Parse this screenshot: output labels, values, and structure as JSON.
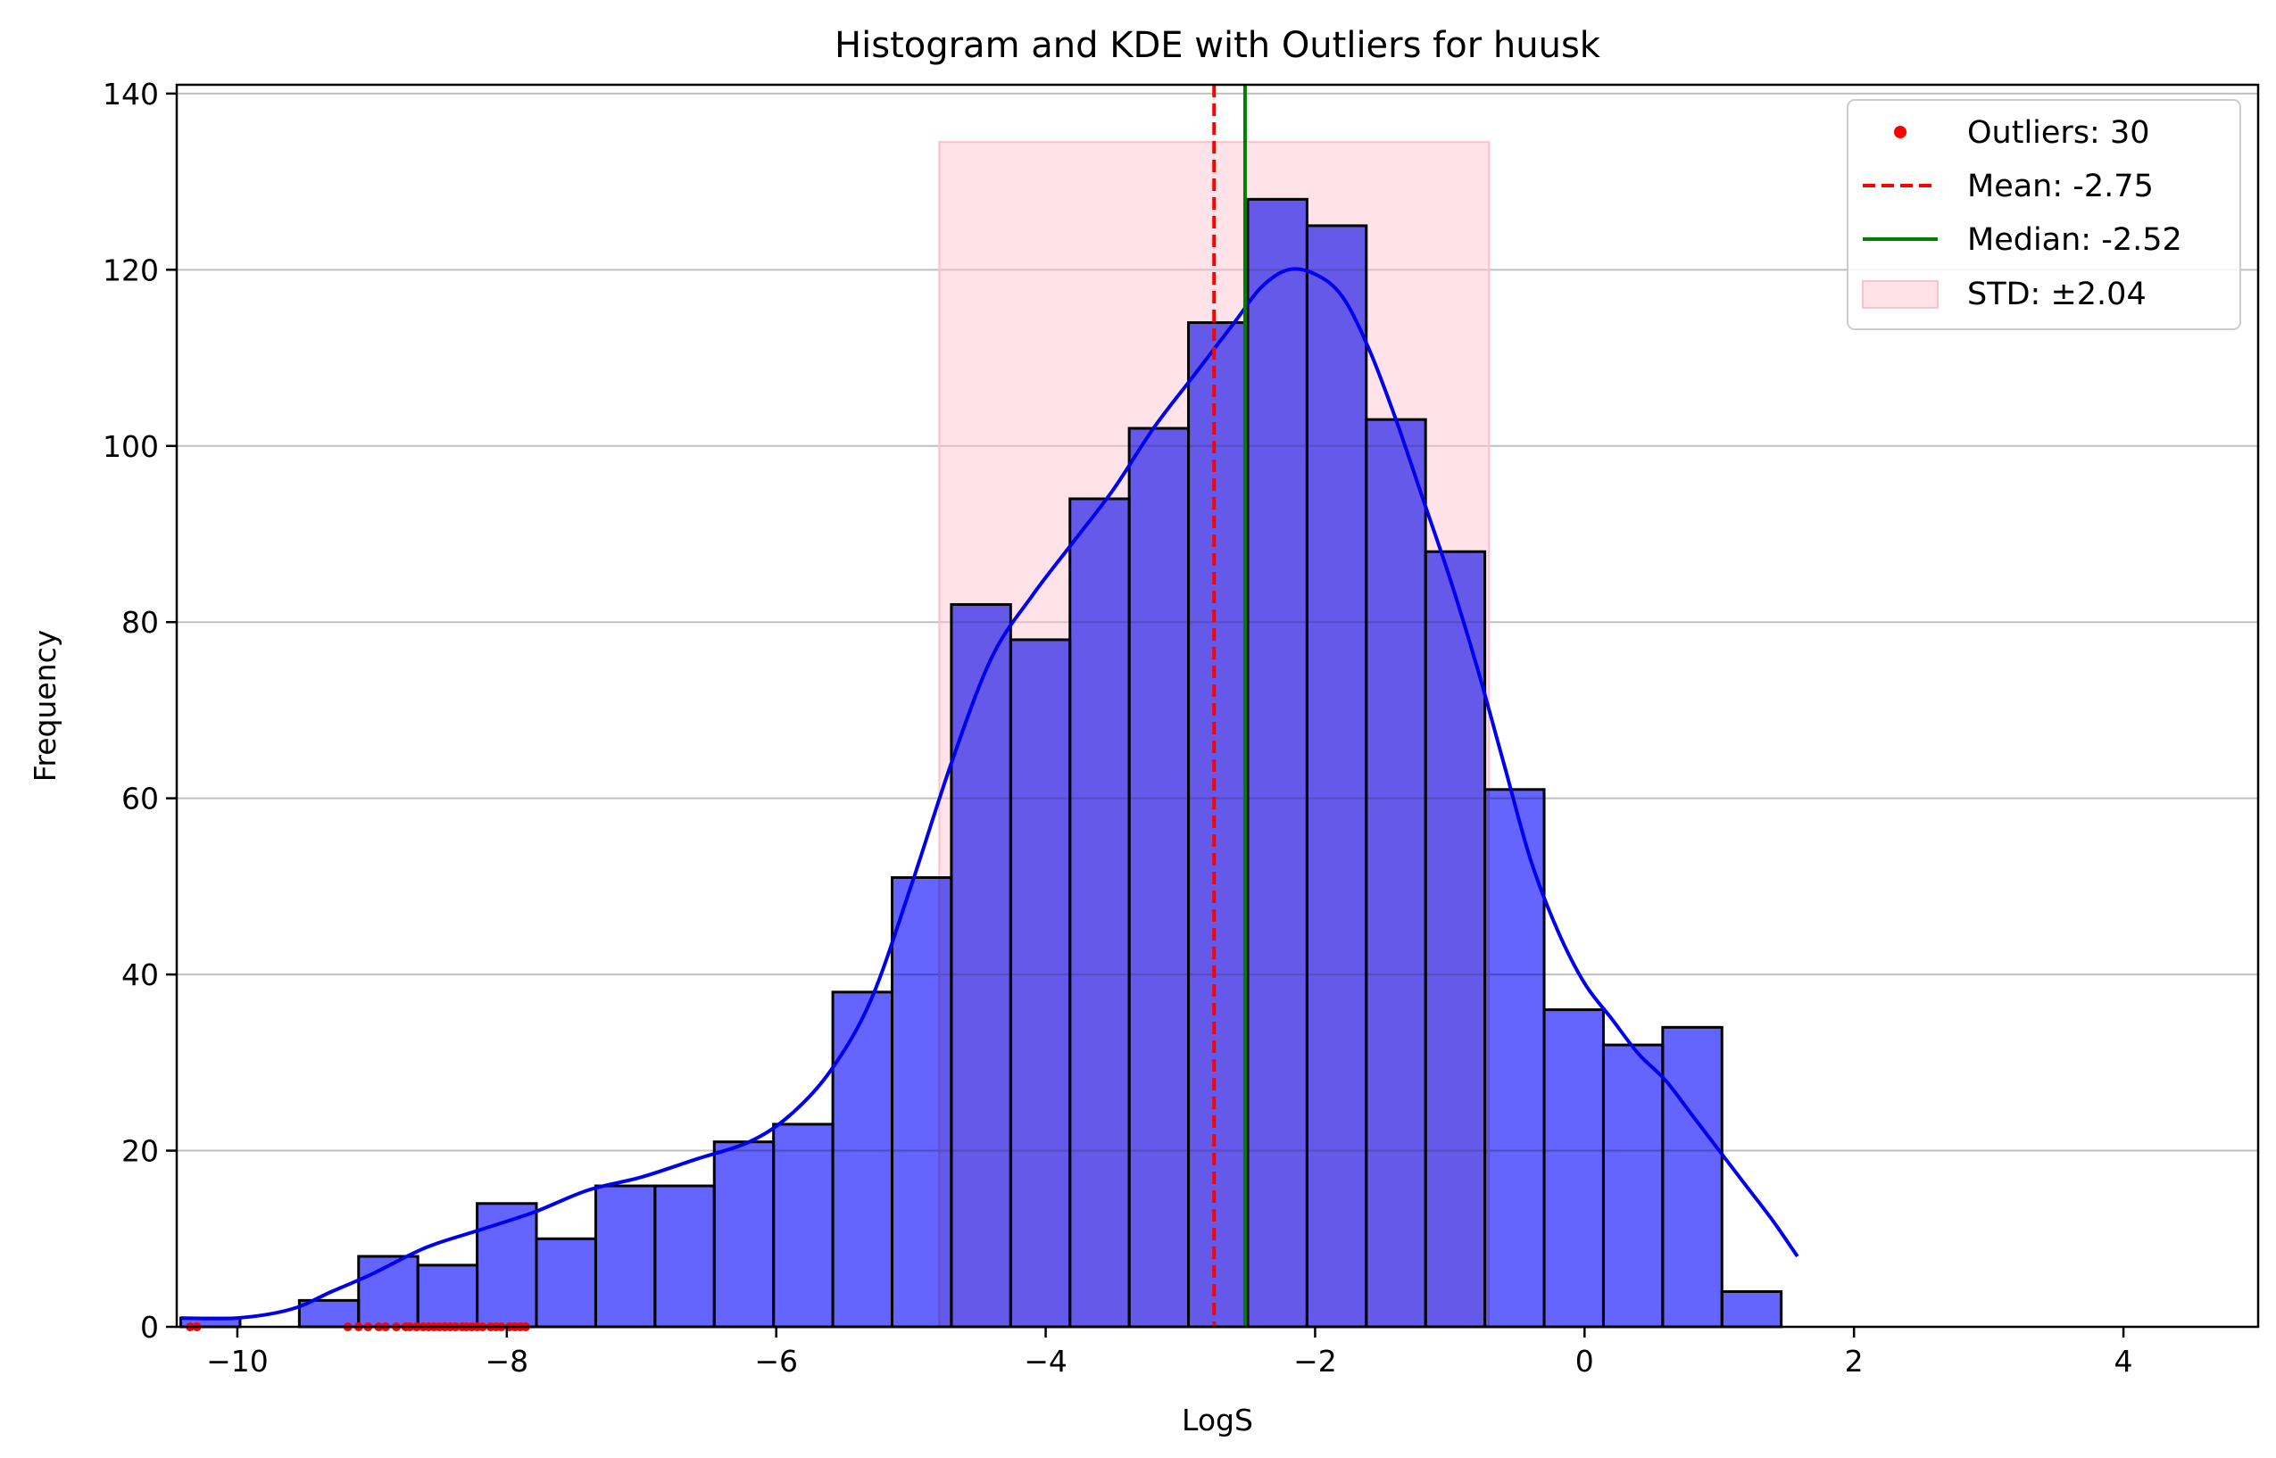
{
  "chart_data": {
    "type": "bar",
    "title": "Histogram and KDE with Outliers for huusk",
    "xlabel": "LogS",
    "ylabel": "Frequency",
    "xlim": [
      -10.45,
      5.0
    ],
    "ylim": [
      0,
      141
    ],
    "x_ticks": [
      -10,
      -8,
      -6,
      -4,
      -2,
      0,
      2,
      4
    ],
    "x_tick_labels": [
      "−10",
      "−8",
      "−6",
      "−4",
      "−2",
      "0",
      "2",
      "4"
    ],
    "y_ticks": [
      0,
      20,
      40,
      60,
      80,
      100,
      120,
      140
    ],
    "y_tick_labels": [
      "0",
      "20",
      "40",
      "60",
      "80",
      "100",
      "120",
      "140"
    ],
    "grid": "y",
    "bins": {
      "start": -10.42,
      "width": 0.44,
      "counts": [
        1,
        0,
        3,
        8,
        7,
        14,
        10,
        16,
        16,
        21,
        23,
        38,
        51,
        82,
        78,
        94,
        102,
        114,
        128,
        125,
        103,
        88,
        61,
        36,
        32,
        34,
        4
      ]
    },
    "kde": {
      "x": [
        -10.42,
        -10.0,
        -9.6,
        -9.3,
        -9.0,
        -8.6,
        -8.2,
        -7.8,
        -7.4,
        -7.0,
        -6.6,
        -6.2,
        -5.9,
        -5.6,
        -5.3,
        -5.0,
        -4.7,
        -4.4,
        -4.1,
        -3.8,
        -3.5,
        -3.2,
        -2.9,
        -2.6,
        -2.4,
        -2.2,
        -2.0,
        -1.8,
        -1.6,
        -1.4,
        -1.2,
        -1.0,
        -0.8,
        -0.6,
        -0.4,
        -0.2,
        0.0,
        0.2,
        0.4,
        0.6,
        0.8,
        1.0,
        1.2,
        1.4,
        1.58
      ],
      "y": [
        1,
        1,
        2,
        4,
        6,
        9,
        11,
        13,
        15.5,
        17,
        19,
        21,
        24,
        29,
        37,
        50,
        64,
        76,
        83,
        89,
        95,
        102,
        108,
        114,
        118,
        120,
        119.5,
        117,
        111,
        103,
        94,
        85,
        75,
        64,
        53,
        45,
        39,
        35,
        31,
        28,
        24,
        20,
        16,
        12,
        8
      ]
    },
    "outliers": {
      "count_label": "Outliers: 30",
      "x": [
        -10.35,
        -10.3,
        -9.18,
        -9.1,
        -9.03,
        -8.95,
        -8.9,
        -8.82,
        -8.75,
        -8.72,
        -8.67,
        -8.62,
        -8.58,
        -8.54,
        -8.5,
        -8.46,
        -8.42,
        -8.38,
        -8.33,
        -8.3,
        -8.26,
        -8.22,
        -8.18,
        -8.12,
        -8.08,
        -8.04,
        -7.98,
        -7.94,
        -7.9,
        -7.86
      ],
      "y": 0
    },
    "mean": {
      "value": -2.75,
      "label": "Mean: -2.75"
    },
    "median": {
      "value": -2.52,
      "label": "Median: -2.52"
    },
    "std": {
      "value": 2.04,
      "label": "STD: ±2.04",
      "band_top": 134.5
    },
    "legend_position": "upper right",
    "colors": {
      "bar_fill": "#6464ff",
      "bar_edge": "#000000",
      "kde": "#0000ee",
      "outlier": "#ff0000",
      "mean": "#ff0000",
      "median": "#008000",
      "std_fill": "#ffc0cb",
      "grid": "#c0c0c0"
    }
  }
}
